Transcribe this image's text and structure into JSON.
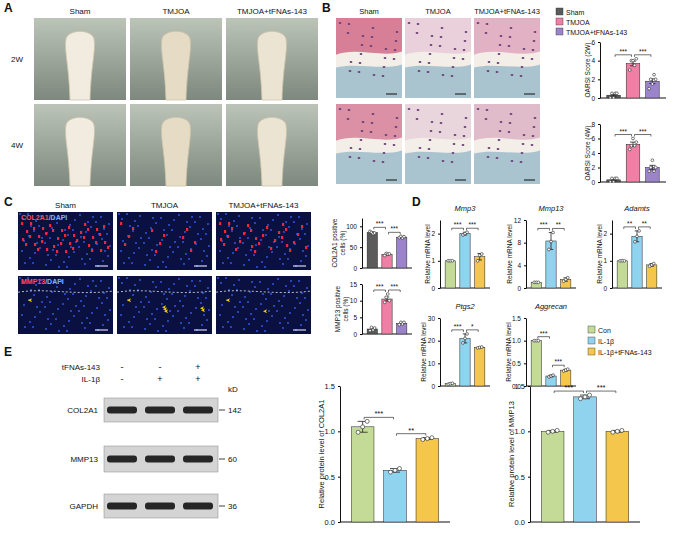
{
  "figure": {
    "panels": [
      "A",
      "B",
      "C",
      "D",
      "E"
    ],
    "panel_a": {
      "columns": [
        "Sham",
        "TMJOA",
        "TMJOA+tFNAs-143"
      ],
      "rows": [
        "2W",
        "4W"
      ]
    },
    "panel_b": {
      "columns": [
        "Sham",
        "TMJOA",
        "TMJOA+tFNAs-143"
      ]
    },
    "panel_c": {
      "columns": [
        "Sham",
        "TMJOA",
        "TMJOA+tFNAs-143"
      ],
      "stains": [
        {
          "marker": "COL2A1",
          "counter": "/DAPI"
        },
        {
          "marker": "MMP13",
          "counter": "/DAPI"
        }
      ]
    },
    "legend_b": [
      {
        "name": "Sham",
        "color": "#5b5b5b"
      },
      {
        "name": "TMJOA",
        "color": "#f07fa6"
      },
      {
        "name": "TMJOA+tFNAs-143",
        "color": "#9b84c9"
      }
    ],
    "legend_d": [
      {
        "name": "Con",
        "color": "#c3db96"
      },
      {
        "name": "IL-1β",
        "color": "#8fd3ef"
      },
      {
        "name": "IL-1β+tFNAs-143",
        "color": "#f4c64b"
      }
    ],
    "blot": {
      "treatments": [
        {
          "name": "tFNAs-143",
          "signs": [
            "-",
            "-",
            "+"
          ]
        },
        {
          "name": "IL-1β",
          "signs": [
            "-",
            "+",
            "+"
          ]
        }
      ],
      "proteins": [
        "COL2A1",
        "MMP13",
        "GAPDH"
      ],
      "unit": "kD",
      "markers": [
        142,
        60,
        36
      ]
    }
  },
  "chart_data": [
    {
      "type": "bar",
      "y_label": "OARSI Score (2W)",
      "values": [
        0.3,
        3.7,
        1.8
      ],
      "errors": [
        0.1,
        0.25,
        0.25
      ],
      "points": [
        [
          0,
          0.5,
          0,
          0.5,
          0.5
        ],
        [
          3,
          4,
          4,
          3.5,
          4.2
        ],
        [
          1,
          2,
          1.5,
          2.5,
          2
        ]
      ],
      "colors": [
        "#5b5b5b",
        "#f07fa6",
        "#9b84c9"
      ],
      "ylim": [
        0,
        6
      ],
      "yticks": [
        0,
        2,
        4,
        6
      ],
      "tick_labels": "y",
      "significance": [
        {
          "pair": [
            0,
            1
          ],
          "label": "***"
        },
        {
          "pair": [
            1,
            2
          ],
          "label": "***"
        }
      ]
    },
    {
      "type": "bar",
      "y_label": "OARSI Score (4W)",
      "values": [
        0.3,
        5.2,
        2.0
      ],
      "errors": [
        0.1,
        0.3,
        0.3
      ],
      "points": [
        [
          0,
          0.5,
          0,
          0.5,
          0.5
        ],
        [
          4.5,
          5,
          6,
          5,
          5.5
        ],
        [
          1.5,
          2,
          3,
          1.5,
          2
        ]
      ],
      "colors": [
        "#5b5b5b",
        "#f07fa6",
        "#9b84c9"
      ],
      "ylim": [
        0,
        8
      ],
      "yticks": [
        0,
        2,
        4,
        6,
        8
      ],
      "tick_labels": "y",
      "significance": [
        {
          "pair": [
            0,
            1
          ],
          "label": "***"
        },
        {
          "pair": [
            1,
            2
          ],
          "label": "***"
        }
      ]
    },
    {
      "type": "bar",
      "y_label": "COL2A1 positive cells (%)",
      "values": [
        85,
        33,
        74
      ],
      "errors": [
        2,
        2,
        1.5
      ],
      "points": [
        [
          88,
          85,
          82,
          84
        ],
        [
          30,
          35,
          33,
          34
        ],
        [
          73,
          76,
          72,
          75
        ]
      ],
      "colors": [
        "#5b5b5b",
        "#f07fa6",
        "#9b84c9"
      ],
      "ylim": [
        0,
        120
      ],
      "yticks": [
        0,
        50,
        100
      ],
      "tick_labels": "y",
      "significance": [
        {
          "pair": [
            0,
            1
          ],
          "label": "***"
        },
        {
          "pair": [
            1,
            2
          ],
          "label": "***"
        }
      ]
    },
    {
      "type": "bar",
      "y_label": "MMP13 positive cells (%)",
      "values": [
        1.5,
        10.5,
        3.2
      ],
      "errors": [
        0.4,
        0.6,
        0.3
      ],
      "points": [
        [
          1,
          2,
          1.2,
          1.8
        ],
        [
          9.5,
          11,
          12,
          10
        ],
        [
          2.8,
          3.5,
          3.0,
          3.5
        ]
      ],
      "colors": [
        "#5b5b5b",
        "#f07fa6",
        "#9b84c9"
      ],
      "ylim": [
        0,
        15
      ],
      "yticks": [
        0,
        5,
        10,
        15
      ],
      "tick_labels": "y",
      "significance": [
        {
          "pair": [
            0,
            1
          ],
          "label": "***"
        },
        {
          "pair": [
            1,
            2
          ],
          "label": "***"
        }
      ]
    },
    {
      "type": "bar",
      "title": "Mmp3",
      "y_label": "Relative mRNA level",
      "values": [
        1.0,
        2.0,
        1.15
      ],
      "errors": [
        0,
        0.05,
        0.12
      ],
      "points": [
        [
          1,
          1,
          1
        ],
        [
          1.95,
          2.0,
          2.05
        ],
        [
          1.0,
          1.2,
          1.25
        ]
      ],
      "colors": [
        "#c3db96",
        "#8fd3ef",
        "#f4c64b"
      ],
      "ylim": [
        0,
        2.5
      ],
      "yticks": [
        0,
        1,
        2
      ],
      "tick_labels": "y",
      "significance": [
        {
          "pair": [
            0,
            1
          ],
          "label": "***"
        },
        {
          "pair": [
            1,
            2
          ],
          "label": "***"
        }
      ]
    },
    {
      "type": "bar",
      "title": "Mmp13",
      "y_label": "Relative mRNA level",
      "values": [
        1.0,
        8.3,
        1.5
      ],
      "errors": [
        0.05,
        1.5,
        0.3
      ],
      "points": [
        [
          1,
          1,
          1
        ],
        [
          6.8,
          8.2,
          9.8
        ],
        [
          1.2,
          1.5,
          1.8
        ]
      ],
      "colors": [
        "#c3db96",
        "#8fd3ef",
        "#f4c64b"
      ],
      "ylim": [
        0,
        12
      ],
      "yticks": [
        0,
        4,
        8,
        12
      ],
      "tick_labels": "y",
      "significance": [
        {
          "pair": [
            0,
            1
          ],
          "label": "***"
        },
        {
          "pair": [
            1,
            2
          ],
          "label": "**"
        }
      ]
    },
    {
      "type": "bar",
      "title": "Adamts",
      "y_label": "Relative mRNA level",
      "values": [
        1.0,
        1.9,
        0.85
      ],
      "errors": [
        0,
        0.2,
        0.05
      ],
      "points": [
        [
          1,
          1,
          1
        ],
        [
          1.7,
          1.9,
          2.1
        ],
        [
          0.8,
          0.85,
          0.9
        ]
      ],
      "colors": [
        "#c3db96",
        "#8fd3ef",
        "#f4c64b"
      ],
      "ylim": [
        0,
        2.5
      ],
      "yticks": [
        0,
        1,
        2
      ],
      "tick_labels": "y",
      "significance": [
        {
          "pair": [
            0,
            1
          ],
          "label": "**"
        },
        {
          "pair": [
            1,
            2
          ],
          "label": "**"
        }
      ]
    },
    {
      "type": "bar",
      "title": "Ptgs2",
      "y_label": "Relative mRNA level",
      "values": [
        1.0,
        21,
        17
      ],
      "errors": [
        0.2,
        2,
        0.2
      ],
      "points": [
        [
          0.8,
          1,
          1.2
        ],
        [
          19,
          21,
          23
        ],
        [
          16.8,
          17,
          17.2
        ]
      ],
      "colors": [
        "#c3db96",
        "#8fd3ef",
        "#f4c64b"
      ],
      "ylim": [
        0,
        30
      ],
      "yticks": [
        0,
        10,
        20,
        30
      ],
      "tick_labels": "y",
      "significance": [
        {
          "pair": [
            0,
            1
          ],
          "label": "***"
        },
        {
          "pair": [
            1,
            2
          ],
          "label": "*"
        }
      ]
    },
    {
      "type": "bar",
      "title": "Aggrecan",
      "y_label": "Relative mRNA level",
      "values": [
        1.0,
        0.22,
        0.35
      ],
      "errors": [
        0,
        0.02,
        0.02
      ],
      "points": [
        [
          1,
          1,
          1
        ],
        [
          0.2,
          0.22,
          0.24
        ],
        [
          0.33,
          0.35,
          0.37
        ]
      ],
      "colors": [
        "#c3db96",
        "#8fd3ef",
        "#f4c64b"
      ],
      "ylim": [
        0,
        1.5
      ],
      "yticks": [
        {
          "value": 0,
          "label": "0.0"
        },
        {
          "value": 0.5,
          "label": "0.5"
        },
        {
          "value": 1,
          "label": "1.0"
        },
        {
          "value": 1.5,
          "label": "1.5"
        }
      ],
      "tick_labels": "y",
      "significance": [
        {
          "pair": [
            0,
            1
          ],
          "label": "***"
        },
        {
          "pair": [
            1,
            2
          ],
          "label": "***"
        }
      ]
    },
    {
      "type": "bar",
      "y_label": "Relative protein level of COL2A1",
      "values": [
        1.05,
        0.57,
        0.92
      ],
      "errors": [
        0.06,
        0.02,
        0.01
      ],
      "points": [
        [
          0.99,
          1.05,
          1.11
        ],
        [
          0.55,
          0.57,
          0.59
        ],
        [
          0.91,
          0.92,
          0.93
        ]
      ],
      "colors": [
        "#c3db96",
        "#8fd3ef",
        "#f4c64b"
      ],
      "ylim": [
        0,
        1.5
      ],
      "yticks": [
        {
          "value": 0,
          "label": "0.0"
        },
        {
          "value": 0.5,
          "label": "0.5"
        },
        {
          "value": 1,
          "label": "1.0"
        },
        {
          "value": 1.5,
          "label": "1.5"
        }
      ],
      "tick_labels": "y",
      "significance": [
        {
          "pair": [
            0,
            1
          ],
          "label": "***"
        },
        {
          "pair": [
            1,
            2
          ],
          "label": "**"
        }
      ]
    },
    {
      "type": "bar",
      "y_label": "Relative protein level of MMP13",
      "values": [
        1.0,
        1.38,
        1.0
      ],
      "errors": [
        0.01,
        0.02,
        0.01
      ],
      "points": [
        [
          0.99,
          1,
          1.01
        ],
        [
          1.36,
          1.38,
          1.4
        ],
        [
          0.99,
          1,
          1.01
        ]
      ],
      "colors": [
        "#c3db96",
        "#8fd3ef",
        "#f4c64b"
      ],
      "ylim": [
        0,
        1.5
      ],
      "yticks": [
        {
          "value": 0,
          "label": "0.0"
        },
        {
          "value": 0.5,
          "label": "0.5"
        },
        {
          "value": 1,
          "label": "1.0"
        },
        {
          "value": 1.5,
          "label": "1.5"
        }
      ],
      "tick_labels": "y",
      "significance": [
        {
          "pair": [
            0,
            1
          ],
          "label": "***"
        },
        {
          "pair": [
            1,
            2
          ],
          "label": "***"
        }
      ]
    }
  ]
}
